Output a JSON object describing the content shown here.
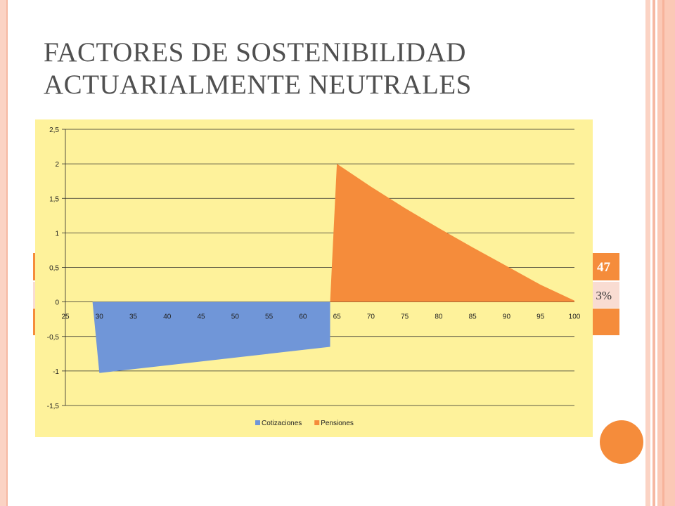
{
  "slide": {
    "title_line1": "FACTORES DE SOSTENIBILIDAD",
    "title_line2": "ACTUARIALMENTE NEUTRALES"
  },
  "table_partial": {
    "row1_value": "47",
    "row2_value": "3%"
  },
  "colors": {
    "accent": "#f58c3b",
    "chart_bg": "#fef29b",
    "cotizaciones": "#7096d8",
    "pensiones": "#f58c3b"
  },
  "chart_data": {
    "type": "area",
    "title": "",
    "xlabel": "",
    "ylabel": "",
    "xlim": [
      25,
      100
    ],
    "ylim": [
      -1.5,
      2.5
    ],
    "x_ticks": [
      "25",
      "30",
      "35",
      "40",
      "45",
      "50",
      "55",
      "60",
      "65",
      "70",
      "75",
      "80",
      "85",
      "90",
      "95",
      "100"
    ],
    "y_ticks": [
      "2,5",
      "2",
      "1,5",
      "1",
      "0,5",
      "0",
      "-0,5",
      "-1",
      "-1,5"
    ],
    "grid": true,
    "legend_position": "bottom",
    "series": [
      {
        "name": "Cotizaciones",
        "color": "#7096d8",
        "points": [
          [
            29,
            0
          ],
          [
            30,
            -1.03
          ],
          [
            64,
            -0.65
          ],
          [
            64,
            0
          ]
        ]
      },
      {
        "name": "Pensiones",
        "color": "#f58c3b",
        "points": [
          [
            64,
            0
          ],
          [
            65,
            2.0
          ],
          [
            70,
            1.67
          ],
          [
            75,
            1.36
          ],
          [
            80,
            1.07
          ],
          [
            85,
            0.79
          ],
          [
            90,
            0.52
          ],
          [
            95,
            0.25
          ],
          [
            100,
            0.02
          ],
          [
            100,
            0
          ]
        ]
      }
    ]
  }
}
